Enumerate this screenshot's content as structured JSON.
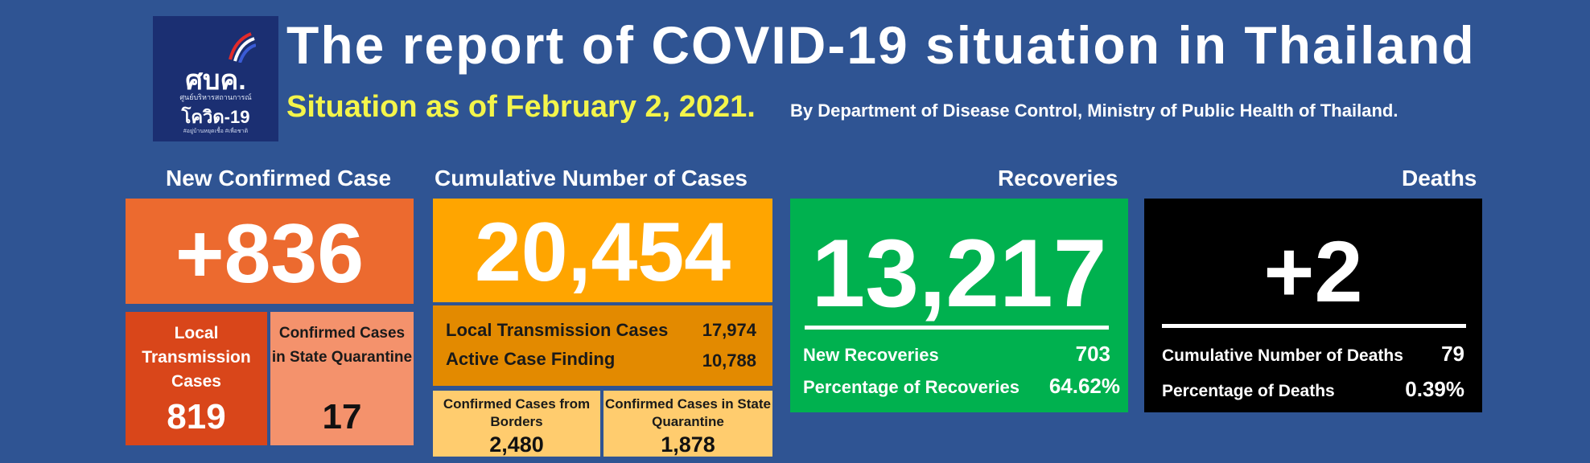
{
  "header": {
    "logo": {
      "abbr": "ศบค.",
      "line1": "ศูนย์บริหารสถานการณ์",
      "line2": "โควิด-19",
      "line3": "#อยู่บ้านหยุดเชื้อ #เพื่อชาติ"
    },
    "title": "The report of COVID-19 situation in Thailand",
    "situation_date": "Situation as of February 2, 2021.",
    "source": "By Department of Disease Control, Ministry of Public Health of Thailand."
  },
  "new_confirmed": {
    "heading": "New Confirmed Case",
    "value": "+836",
    "local_label": "Local Transmission Cases",
    "local_value": "819",
    "quarantine_label": "Confirmed Cases in State Quarantine",
    "quarantine_value": "17"
  },
  "cumulative": {
    "heading": "Cumulative Number of Cases",
    "value": "20,454",
    "rows": [
      {
        "label": "Local Transmission Cases",
        "value": "17,974"
      },
      {
        "label": "Active Case Finding",
        "value": "10,788"
      }
    ],
    "borders_label": "Confirmed Cases from Borders",
    "borders_value": "2,480",
    "quarantine_label": "Confirmed Cases in State Quarantine",
    "quarantine_value": "1,878"
  },
  "recoveries": {
    "heading": "Recoveries",
    "value": "13,217",
    "new_label": "New Recoveries",
    "new_value": "703",
    "pct_label": "Percentage of Recoveries",
    "pct_value": "64.62%"
  },
  "deaths": {
    "heading": "Deaths",
    "value": "+2",
    "cum_label": "Cumulative Number of Deaths",
    "cum_value": "79",
    "pct_label": "Percentage of Deaths",
    "pct_value": "0.39%"
  },
  "colors": {
    "background": "#2f5493",
    "orange": "#ec6a2f",
    "dark_orange": "#d9461a",
    "light_orange": "#f4926c",
    "amber": "#ffa500",
    "dark_amber": "#e38a00",
    "light_amber": "#ffcc6e",
    "green": "#00b14f",
    "black": "#000000",
    "yellow_text": "#f4f54a"
  }
}
